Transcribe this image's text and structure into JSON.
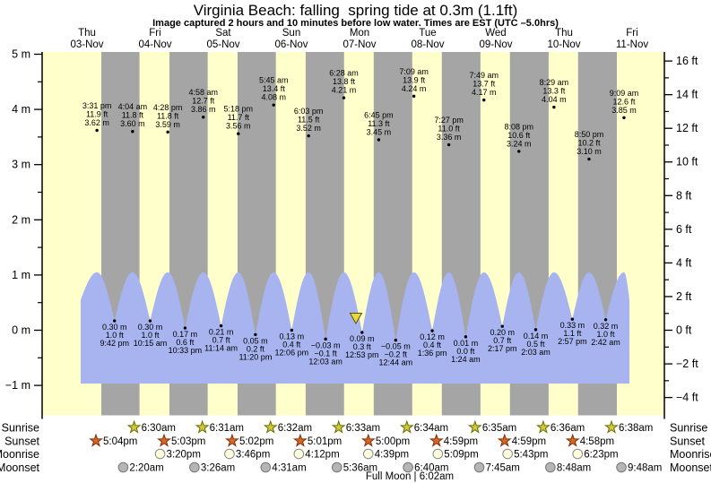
{
  "title": "Virginia Beach: falling  spring tide at 0.3m (1.1ft)",
  "subtitle": "Image captured 2 hours and 10 minutes before low water. Times are EST (UTC –5.0hrs)",
  "colors": {
    "day_stripe": "#ffffcc",
    "night_stripe": "#a5a5a5",
    "water": "#a7b4f0",
    "date_label": "#f30000",
    "axis": "#000000",
    "capture_marker_fill": "#e8d83c",
    "capture_marker_stroke": "#5a5500",
    "sunrise_icon": "#d2c83c",
    "sunrise_icon_stroke": "#6b6b00",
    "sunset_icon": "#cf6b2a",
    "sunset_icon_stroke": "#8a2a00",
    "moonrise_icon": "#ffffdd",
    "moonrise_icon_stroke": "#888888",
    "moonset_icon": "#b5b5b5",
    "moonset_icon_stroke": "#777777"
  },
  "chart_data": {
    "type": "area",
    "title": "Virginia Beach: falling  spring tide at 0.3m (1.1ft)",
    "subtitle": "Image captured 2 hours and 10 minutes before low water. Times are EST (UTC –5.0hrs)",
    "x_axis_days": [
      {
        "name": "Thu",
        "date": "03-Nov"
      },
      {
        "name": "Fri",
        "date": "04-Nov"
      },
      {
        "name": "Sat",
        "date": "05-Nov"
      },
      {
        "name": "Sun",
        "date": "06-Nov"
      },
      {
        "name": "Mon",
        "date": "07-Nov"
      },
      {
        "name": "Tue",
        "date": "08-Nov"
      },
      {
        "name": "Wed",
        "date": "09-Nov"
      },
      {
        "name": "Thu",
        "date": "10-Nov"
      },
      {
        "name": "Fri",
        "date": "11-Nov"
      }
    ],
    "y_axis_left": {
      "unit": "m",
      "ticks": [
        5,
        4,
        3,
        2,
        1,
        0,
        -1
      ]
    },
    "y_axis_right": {
      "unit": "ft",
      "ticks": [
        16,
        14,
        12,
        10,
        8,
        6,
        4,
        2,
        0,
        -2,
        -4
      ]
    },
    "high_tides": [
      {
        "day": 0,
        "time": "3:31 pm",
        "ft": 11.9,
        "m": 3.62
      },
      {
        "day": 1,
        "time": "4:04 am",
        "ft": 11.8,
        "m": 3.6
      },
      {
        "day": 1,
        "time": "4:28 pm",
        "ft": 11.8,
        "m": 3.59
      },
      {
        "day": 2,
        "time": "4:58 am",
        "ft": 12.7,
        "m": 3.86
      },
      {
        "day": 2,
        "time": "5:18 pm",
        "ft": 11.7,
        "m": 3.56
      },
      {
        "day": 3,
        "time": "5:45 am",
        "ft": 13.4,
        "m": 4.08
      },
      {
        "day": 3,
        "time": "6:03 pm",
        "ft": 11.5,
        "m": 3.52
      },
      {
        "day": 4,
        "time": "6:28 am",
        "ft": 13.8,
        "m": 4.21
      },
      {
        "day": 4,
        "time": "6:45 pm",
        "ft": 11.3,
        "m": 3.45
      },
      {
        "day": 5,
        "time": "7:09 am",
        "ft": 13.9,
        "m": 4.24
      },
      {
        "day": 5,
        "time": "7:27 pm",
        "ft": 11.0,
        "m": 3.36
      },
      {
        "day": 6,
        "time": "7:49 am",
        "ft": 13.7,
        "m": 4.17
      },
      {
        "day": 6,
        "time": "8:08 pm",
        "ft": 10.6,
        "m": 3.24
      },
      {
        "day": 7,
        "time": "8:29 am",
        "ft": 13.3,
        "m": 4.04
      },
      {
        "day": 7,
        "time": "8:50 pm",
        "ft": 10.2,
        "m": 3.1
      },
      {
        "day": 8,
        "time": "9:09 am",
        "ft": 12.6,
        "m": 3.85
      }
    ],
    "low_tides": [
      {
        "day": 0,
        "time": "9:42 pm",
        "ft": 1.0,
        "m": 0.3
      },
      {
        "day": 1,
        "time": "10:15 am",
        "ft": 1.0,
        "m": 0.3
      },
      {
        "day": 1,
        "time": "10:33 pm",
        "ft": 0.6,
        "m": 0.17
      },
      {
        "day": 2,
        "time": "11:14 am",
        "ft": 0.7,
        "m": 0.21
      },
      {
        "day": 2,
        "time": "11:20 pm",
        "ft": 0.2,
        "m": 0.05
      },
      {
        "day": 3,
        "time": "12:06 pm",
        "ft": 0.4,
        "m": 0.13
      },
      {
        "day": 4,
        "time": "12:03 am",
        "ft": -0.1,
        "m": -0.03
      },
      {
        "day": 4,
        "time": "12:53 pm",
        "ft": 0.3,
        "m": 0.09
      },
      {
        "day": 5,
        "time": "12:44 am",
        "ft": -0.2,
        "m": -0.05
      },
      {
        "day": 5,
        "time": "1:36 pm",
        "ft": 0.4,
        "m": 0.12
      },
      {
        "day": 6,
        "time": "1:24 am",
        "ft": 0.0,
        "m": 0.01
      },
      {
        "day": 6,
        "time": "2:17 pm",
        "ft": 0.7,
        "m": 0.2
      },
      {
        "day": 7,
        "time": "2:03 am",
        "ft": 0.5,
        "m": 0.14
      },
      {
        "day": 7,
        "time": "2:57 pm",
        "ft": 1.1,
        "m": 0.33
      },
      {
        "day": 8,
        "time": "2:42 am",
        "ft": 1.0,
        "m": 0.32
      }
    ],
    "capture_marker": {
      "shape": "triangle-down",
      "day": 4,
      "time": "10:43 am"
    }
  },
  "almanac": {
    "rows": [
      {
        "label": "Sunrise",
        "icon": "sunrise-star-icon",
        "events": [
          {
            "day": 1,
            "time": "6:30am"
          },
          {
            "day": 2,
            "time": "6:31am"
          },
          {
            "day": 3,
            "time": "6:32am"
          },
          {
            "day": 4,
            "time": "6:33am"
          },
          {
            "day": 5,
            "time": "6:34am"
          },
          {
            "day": 6,
            "time": "6:35am"
          },
          {
            "day": 7,
            "time": "6:36am"
          },
          {
            "day": 8,
            "time": "6:38am"
          }
        ]
      },
      {
        "label": "Sunset",
        "icon": "sunset-star-icon",
        "events": [
          {
            "day": 0,
            "time": "5:04pm"
          },
          {
            "day": 1,
            "time": "5:03pm"
          },
          {
            "day": 2,
            "time": "5:02pm"
          },
          {
            "day": 3,
            "time": "5:01pm"
          },
          {
            "day": 4,
            "time": "5:00pm"
          },
          {
            "day": 5,
            "time": "4:59pm"
          },
          {
            "day": 6,
            "time": "4:59pm"
          },
          {
            "day": 7,
            "time": "4:58pm"
          }
        ]
      },
      {
        "label": "Moonrise",
        "icon": "moonrise-circle-icon",
        "events": [
          {
            "day": 1,
            "time": "3:20pm"
          },
          {
            "day": 2,
            "time": "3:46pm"
          },
          {
            "day": 3,
            "time": "4:12pm"
          },
          {
            "day": 4,
            "time": "4:39pm"
          },
          {
            "day": 5,
            "time": "5:09pm"
          },
          {
            "day": 6,
            "time": "5:43pm"
          },
          {
            "day": 7,
            "time": "6:23pm"
          }
        ]
      },
      {
        "label": "Moonset",
        "icon": "moonset-circle-icon",
        "events": [
          {
            "day": 1,
            "time": "2:20am"
          },
          {
            "day": 2,
            "time": "3:26am"
          },
          {
            "day": 3,
            "time": "4:31am"
          },
          {
            "day": 4,
            "time": "5:36am"
          },
          {
            "day": 5,
            "time": "6:40am"
          },
          {
            "day": 6,
            "time": "7:45am"
          },
          {
            "day": 7,
            "time": "8:48am"
          },
          {
            "day": 8,
            "time": "9:48am"
          }
        ]
      }
    ],
    "full_moon_label": "Full Moon | 6:02am"
  }
}
